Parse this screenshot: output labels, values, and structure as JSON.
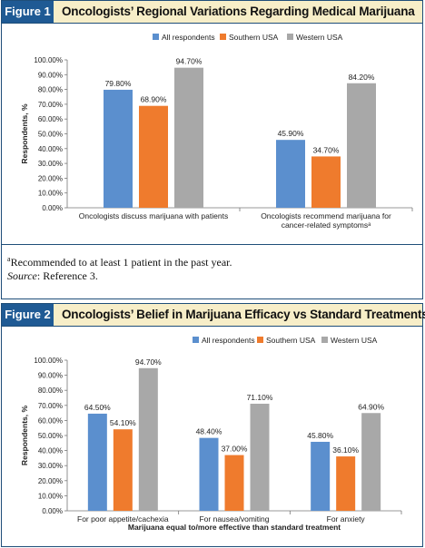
{
  "colors": {
    "all": "#5b8fce",
    "southern": "#ef7b2d",
    "western": "#a8a8a8",
    "header_bg": "#f7eec8",
    "tag_bg": "#1f5a94"
  },
  "figure1": {
    "tag": "Figure 1",
    "title": "Oncologists’ Regional Variations Regarding Medical Marijuana",
    "footnote_marker": "a",
    "footnote_text": "Recommended to at least 1 patient in the past year.",
    "source_label": "Source",
    "source_text": ": Reference 3."
  },
  "figure2": {
    "tag": "Figure 2",
    "title": "Oncologists’ Belief in Marijuana Efficacy vs Standard Treatments"
  },
  "chart_data": [
    {
      "type": "bar",
      "categories": [
        "Oncologists discuss marijuana with patients",
        "Oncologists recommend marijuana for cancer-related symptoms"
      ],
      "category_lines": [
        [
          "Oncologists discuss marijuana with patients"
        ],
        [
          "Oncologists recommend marijuana for",
          "cancer-related symptomsᵃ"
        ]
      ],
      "series": [
        {
          "name": "All respondents",
          "values": [
            79.8,
            45.9
          ],
          "labels": [
            "79.80%",
            "45.90%"
          ]
        },
        {
          "name": "Southern USA",
          "values": [
            68.9,
            34.7
          ],
          "labels": [
            "68.90%",
            "34.70%"
          ]
        },
        {
          "name": "Western USA",
          "values": [
            94.7,
            84.2
          ],
          "labels": [
            "94.70%",
            "84.20%"
          ]
        }
      ],
      "ylabel": "Respondents, %",
      "xlabel": "",
      "ylim": [
        0,
        100
      ],
      "yticks": [
        "0.00%",
        "10.00%",
        "20.00%",
        "30.00%",
        "40.00%",
        "50.00%",
        "60.00%",
        "70.00%",
        "80.00%",
        "90.00%",
        "100.00%"
      ],
      "legend_position": "top-center",
      "grid": false
    },
    {
      "type": "bar",
      "categories": [
        "For poor appetite/cachexia",
        "For nausea/vomiting",
        "For anxiety"
      ],
      "category_lines": [
        [
          "For poor appetite/cachexia"
        ],
        [
          "For nausea/vomiting"
        ],
        [
          "For anxiety"
        ]
      ],
      "series": [
        {
          "name": "All respondents",
          "values": [
            64.5,
            48.4,
            45.8
          ],
          "labels": [
            "64.50%",
            "48.40%",
            "45.80%"
          ]
        },
        {
          "name": "Southern USA",
          "values": [
            54.1,
            37.0,
            36.1
          ],
          "labels": [
            "54.10%",
            "37.00%",
            "36.10%"
          ]
        },
        {
          "name": "Western USA",
          "values": [
            94.7,
            71.1,
            64.9
          ],
          "labels": [
            "94.70%",
            "71.10%",
            "64.90%"
          ]
        }
      ],
      "ylabel": "Respondents, %",
      "xlabel": "Marijuana equal to/more effective than standard treatment",
      "ylim": [
        0,
        100
      ],
      "yticks": [
        "0.00%",
        "10.00%",
        "20.00%",
        "30.00%",
        "40.00%",
        "50.00%",
        "60.00%",
        "70.00%",
        "80.00%",
        "90.00%",
        "100.00%"
      ],
      "legend_position": "top-right",
      "grid": false
    }
  ]
}
